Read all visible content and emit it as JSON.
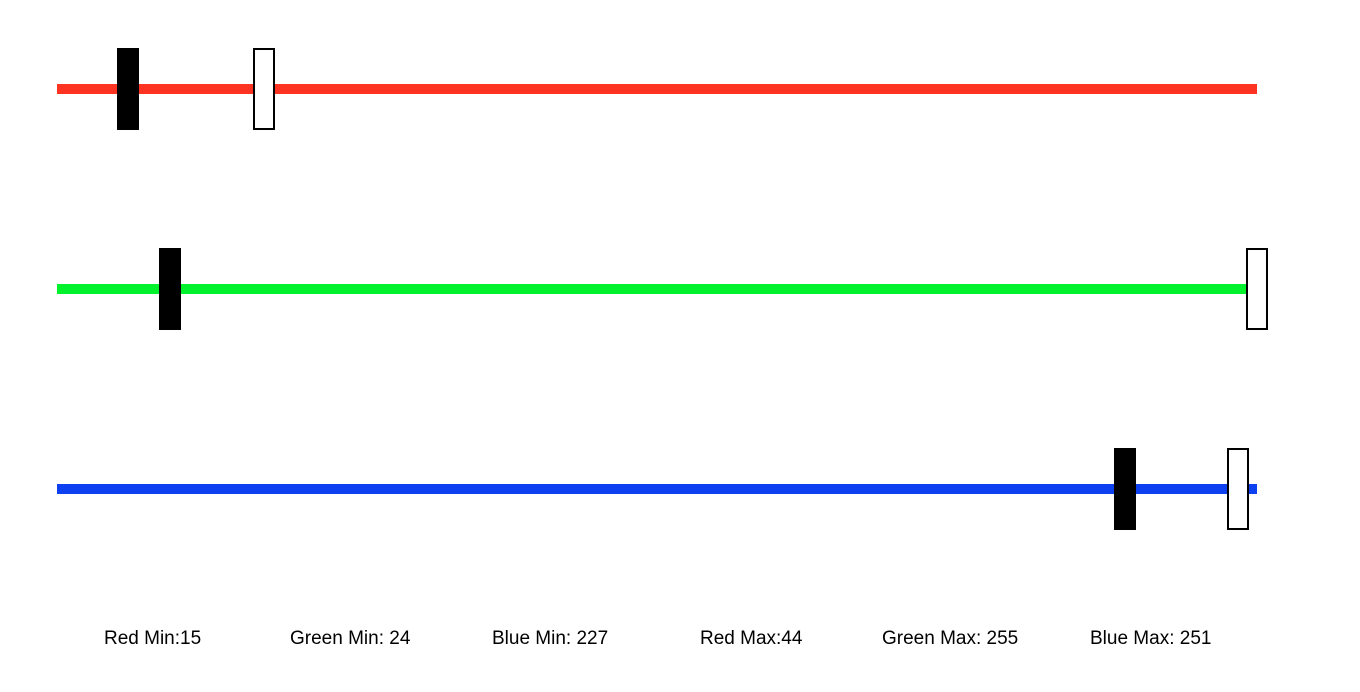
{
  "range": {
    "min": 0,
    "max": 255
  },
  "channels": [
    {
      "id": "red",
      "color": "#ff3322",
      "min": 15,
      "max": 44
    },
    {
      "id": "green",
      "color": "#00f22c",
      "min": 24,
      "max": 255
    },
    {
      "id": "blue",
      "color": "#0d40f0",
      "min": 227,
      "max": 251
    }
  ],
  "labels": {
    "red_min": "Red Min:15",
    "green_min": "Green Min: 24",
    "blue_min": "Blue Min: 227",
    "red_max": "Red Max:44",
    "green_max": "Green Max: 255",
    "blue_max": "Blue Max: 251"
  }
}
